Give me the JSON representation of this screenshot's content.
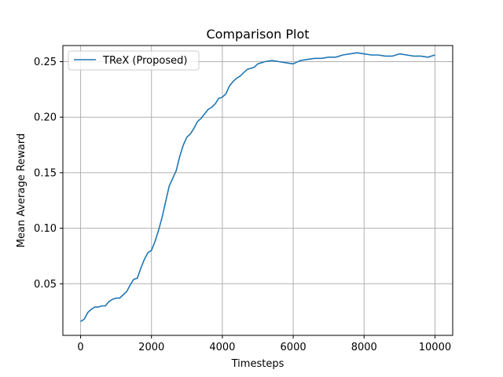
{
  "chart_data": {
    "type": "line",
    "title": "Comparison Plot",
    "xlabel": "Timesteps",
    "ylabel": "Mean Average Reward",
    "xlim": [
      -500,
      10500
    ],
    "ylim": [
      0.0035,
      0.2645
    ],
    "x_ticks": [
      0,
      2000,
      4000,
      6000,
      8000,
      10000
    ],
    "x_tick_labels": [
      "0",
      "2000",
      "4000",
      "6000",
      "8000",
      "10000"
    ],
    "y_ticks": [
      0.05,
      0.1,
      0.15,
      0.2,
      0.25
    ],
    "y_tick_labels": [
      "0.05",
      "0.10",
      "0.15",
      "0.20",
      "0.25"
    ],
    "grid": true,
    "legend_position": "top-left",
    "series": [
      {
        "name": "TReX (Proposed)",
        "color": "#1f77b4",
        "x": [
          0,
          100,
          200,
          300,
          400,
          500,
          600,
          700,
          800,
          900,
          1000,
          1100,
          1200,
          1300,
          1400,
          1500,
          1600,
          1700,
          1800,
          1900,
          2000,
          2100,
          2200,
          2300,
          2400,
          2500,
          2600,
          2700,
          2800,
          2900,
          3000,
          3100,
          3200,
          3300,
          3400,
          3500,
          3600,
          3700,
          3800,
          3900,
          4000,
          4100,
          4200,
          4300,
          4400,
          4500,
          4600,
          4700,
          4800,
          4900,
          5000,
          5200,
          5400,
          5600,
          5800,
          6000,
          6200,
          6400,
          6600,
          6800,
          7000,
          7200,
          7400,
          7600,
          7800,
          8000,
          8200,
          8400,
          8600,
          8800,
          9000,
          9200,
          9400,
          9600,
          9800,
          10000
        ],
        "y": [
          0.016,
          0.018,
          0.024,
          0.027,
          0.029,
          0.029,
          0.03,
          0.03,
          0.034,
          0.036,
          0.037,
          0.037,
          0.04,
          0.043,
          0.049,
          0.054,
          0.055,
          0.064,
          0.072,
          0.078,
          0.08,
          0.088,
          0.098,
          0.11,
          0.124,
          0.138,
          0.145,
          0.152,
          0.165,
          0.175,
          0.182,
          0.185,
          0.19,
          0.196,
          0.199,
          0.203,
          0.207,
          0.209,
          0.212,
          0.217,
          0.218,
          0.221,
          0.228,
          0.232,
          0.235,
          0.237,
          0.24,
          0.243,
          0.244,
          0.245,
          0.248,
          0.25,
          0.251,
          0.25,
          0.249,
          0.248,
          0.251,
          0.252,
          0.253,
          0.253,
          0.254,
          0.254,
          0.256,
          0.257,
          0.258,
          0.257,
          0.256,
          0.256,
          0.255,
          0.255,
          0.257,
          0.256,
          0.255,
          0.255,
          0.254,
          0.256
        ]
      }
    ]
  }
}
